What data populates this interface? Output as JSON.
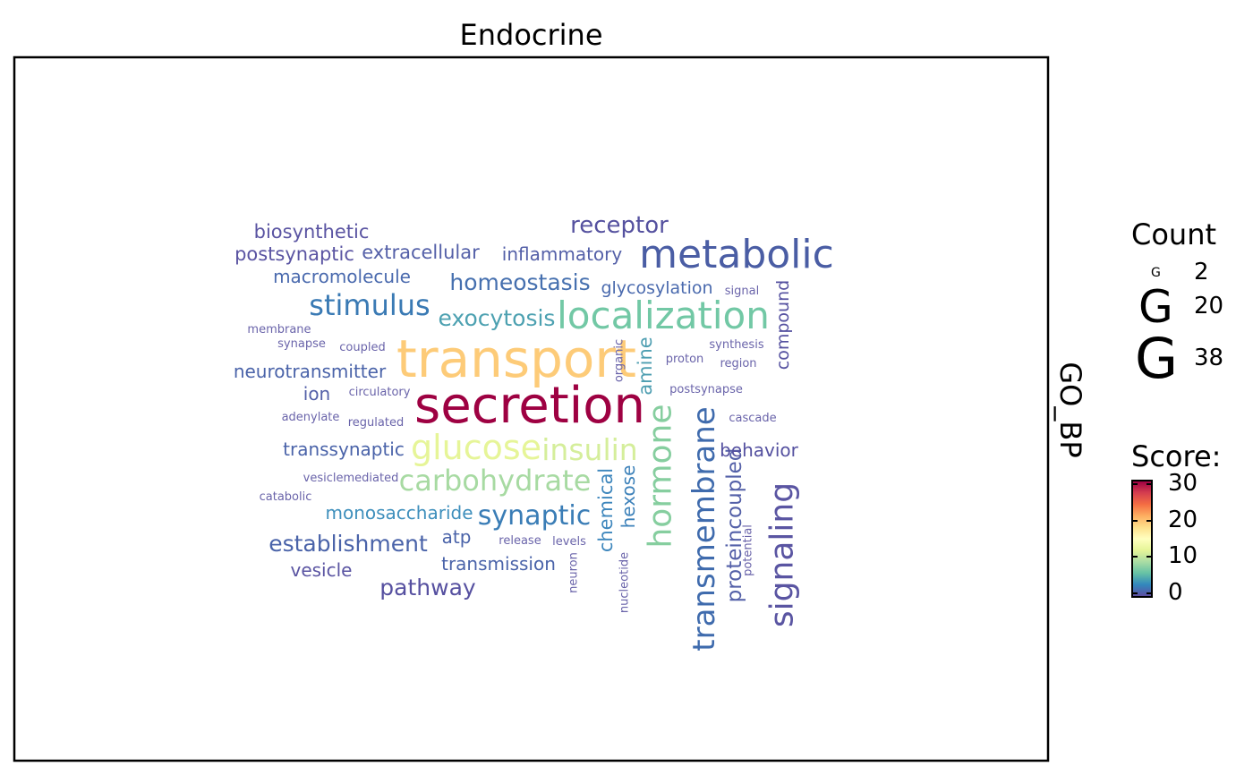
{
  "chart_data": {
    "type": "wordcloud",
    "title": "Endocrine",
    "facet_label": "GO_BP",
    "legend": {
      "size_title": "Count",
      "size_entries": [
        {
          "glyph": "G",
          "value": "2"
        },
        {
          "glyph": "G",
          "value": "20"
        },
        {
          "glyph": "G",
          "value": "38"
        }
      ],
      "color_title": "Score:",
      "color_ticks": [
        "30",
        "20",
        "10",
        "0"
      ],
      "color_range": [
        0,
        30
      ],
      "palette": [
        "#5E4FA2",
        "#3288BD",
        "#66C2A5",
        "#ABDDA4",
        "#E6F598",
        "#FFFFBF",
        "#FEE08B",
        "#FDAE61",
        "#F46D43",
        "#D53E4F",
        "#9E0142"
      ]
    },
    "words": [
      {
        "text": "secretion",
        "color": "#9E0142"
      },
      {
        "text": "transport",
        "color": "#FDCB78"
      },
      {
        "text": "metabolic",
        "color": "#4A5DA4"
      },
      {
        "text": "localization",
        "color": "#72C8A5"
      },
      {
        "text": "glucose",
        "color": "#E6F598"
      },
      {
        "text": "insulin",
        "color": "#D5EE9B"
      },
      {
        "text": "carbohydrate",
        "color": "#A7DAA2"
      },
      {
        "text": "hormone",
        "color": "#86CE9F"
      },
      {
        "text": "transmembrane",
        "color": "#3F6BAD"
      },
      {
        "text": "signaling",
        "color": "#5A55A2"
      },
      {
        "text": "stimulus",
        "color": "#3A7AB4"
      },
      {
        "text": "synaptic",
        "color": "#3A7DB6"
      },
      {
        "text": "receptor",
        "color": "#55519F"
      },
      {
        "text": "homeostasis",
        "color": "#4670AF"
      },
      {
        "text": "exocytosis",
        "color": "#4DA1B1"
      },
      {
        "text": "establishment",
        "color": "#4A63A9"
      },
      {
        "text": "pathway",
        "color": "#5650A0"
      },
      {
        "text": "amine",
        "color": "#4E9EB1"
      },
      {
        "text": "proteincoupled",
        "color": "#5460A8"
      },
      {
        "text": "chemical",
        "color": "#3D86BC"
      },
      {
        "text": "compound",
        "color": "#5551A0"
      },
      {
        "text": "biosynthetic",
        "color": "#5A54A2"
      },
      {
        "text": "postsynaptic",
        "color": "#5A54A2"
      },
      {
        "text": "extracellular",
        "color": "#5460A8"
      },
      {
        "text": "inflammatory",
        "color": "#5460A8"
      },
      {
        "text": "macromolecule",
        "color": "#4A6AAE"
      },
      {
        "text": "glycosylation",
        "color": "#4A6AAE"
      },
      {
        "text": "neurotransmitter",
        "color": "#4A63A9"
      },
      {
        "text": "ion",
        "color": "#5460A8"
      },
      {
        "text": "transsynaptic",
        "color": "#4A63A9"
      },
      {
        "text": "behavior",
        "color": "#5551A0"
      },
      {
        "text": "monosaccharide",
        "color": "#3E8FBC"
      },
      {
        "text": "hexose",
        "color": "#3E82BA"
      },
      {
        "text": "atp",
        "color": "#4A63A9"
      },
      {
        "text": "transmission",
        "color": "#4A63A9"
      },
      {
        "text": "vesicle",
        "color": "#5A54A2"
      },
      {
        "text": "signal",
        "color": "#6A64AA"
      },
      {
        "text": "membrane",
        "color": "#6A64AA"
      },
      {
        "text": "synapse",
        "color": "#6A64AA"
      },
      {
        "text": "coupled",
        "color": "#6A64AA"
      },
      {
        "text": "circulatory",
        "color": "#6A64AA"
      },
      {
        "text": "adenylate",
        "color": "#6A64AA"
      },
      {
        "text": "regulated",
        "color": "#6A64AA"
      },
      {
        "text": "vesiclemediated",
        "color": "#6A64AA"
      },
      {
        "text": "catabolic",
        "color": "#6A64AA"
      },
      {
        "text": "organic",
        "color": "#6A64AA"
      },
      {
        "text": "synthesis",
        "color": "#6A64AA"
      },
      {
        "text": "proton",
        "color": "#6A64AA"
      },
      {
        "text": "region",
        "color": "#6A64AA"
      },
      {
        "text": "postsynapse",
        "color": "#6A64AA"
      },
      {
        "text": "cascade",
        "color": "#6A64AA"
      },
      {
        "text": "release",
        "color": "#6A64AA"
      },
      {
        "text": "levels",
        "color": "#6A64AA"
      },
      {
        "text": "neuron",
        "color": "#6A64AA"
      },
      {
        "text": "nucleotide",
        "color": "#6A64AA"
      },
      {
        "text": "potential",
        "color": "#6A64AA"
      }
    ]
  }
}
